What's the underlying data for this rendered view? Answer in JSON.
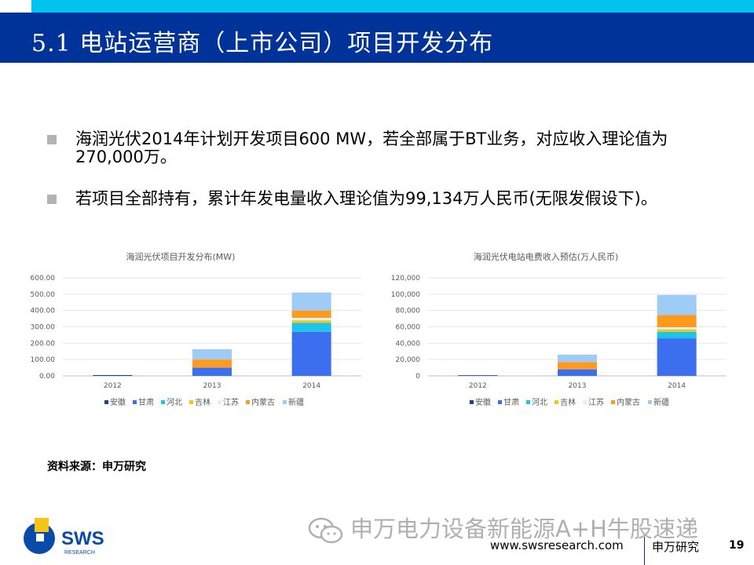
{
  "header": {
    "title": "5.1 电站运营商（上市公司）项目开发分布"
  },
  "bullets": [
    {
      "text": "海润光伏2014年计划开发项目600 MW，若全部属于BT业务，对应收入理论值为270,000万。"
    },
    {
      "text": "若项目全部持有，累计年发电量收入理论值为99,134万人民币(无限发假设下)。"
    }
  ],
  "chart_data": [
    {
      "type": "bar",
      "stacked": true,
      "title": "海润光伏项目开发分布(MW)",
      "categories": [
        "2012",
        "2013",
        "2014"
      ],
      "ylim": [
        0,
        600
      ],
      "yticks": [
        "0.00",
        "100.00",
        "200.00",
        "300.00",
        "400.00",
        "500.00",
        "600.00"
      ],
      "legend_position": "bottom",
      "series": [
        {
          "name": "安徽",
          "color": "#1f3f8f",
          "values": [
            5,
            0,
            0
          ]
        },
        {
          "name": "甘肃",
          "color": "#3b6ff0",
          "values": [
            0,
            50,
            270
          ]
        },
        {
          "name": "河北",
          "color": "#1ec3e8",
          "values": [
            0,
            0,
            55
          ]
        },
        {
          "name": "吉林",
          "color": "#f5c518",
          "values": [
            0,
            0,
            15
          ]
        },
        {
          "name": "江苏",
          "color": "#d8f4fb",
          "values": [
            0,
            0,
            15
          ]
        },
        {
          "name": "内蒙古",
          "color": "#ff9a1c",
          "values": [
            0,
            50,
            45
          ]
        },
        {
          "name": "新疆",
          "color": "#9fcbf7",
          "values": [
            0,
            63,
            110
          ]
        }
      ]
    },
    {
      "type": "bar",
      "stacked": true,
      "title": "海润光伏电站电费收入预估(万人民币)",
      "categories": [
        "2012",
        "2013",
        "2014"
      ],
      "ylim": [
        0,
        120000
      ],
      "yticks": [
        "0",
        "20,000",
        "40,000",
        "60,000",
        "80,000",
        "100,000",
        "120,000"
      ],
      "legend_position": "bottom",
      "series": [
        {
          "name": "安徽",
          "color": "#1f3f8f",
          "values": [
            800,
            0,
            0
          ]
        },
        {
          "name": "甘肃",
          "color": "#3b6ff0",
          "values": [
            0,
            8000,
            46000
          ]
        },
        {
          "name": "河北",
          "color": "#1ec3e8",
          "values": [
            0,
            0,
            8000
          ]
        },
        {
          "name": "吉林",
          "color": "#f5c518",
          "values": [
            0,
            0,
            3000
          ]
        },
        {
          "name": "江苏",
          "color": "#d8f4fb",
          "values": [
            0,
            0,
            2500
          ]
        },
        {
          "name": "内蒙古",
          "color": "#ff9a1c",
          "values": [
            0,
            9000,
            15000
          ]
        },
        {
          "name": "新疆",
          "color": "#9fcbf7",
          "values": [
            0,
            9000,
            24500
          ]
        }
      ]
    }
  ],
  "source": {
    "text": "资料来源：申万研究"
  },
  "logo": {
    "text": "SWS",
    "subtext": "RESEARCH"
  },
  "watermark": {
    "text": "申万电力设备新能源A+H牛股速递"
  },
  "footer": {
    "url": "www.swsresearch.com",
    "org": "申万研究",
    "page": "19"
  }
}
